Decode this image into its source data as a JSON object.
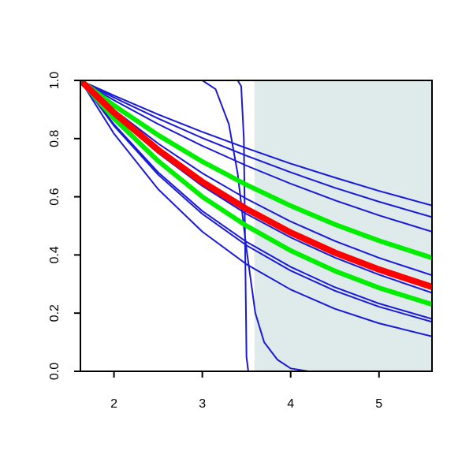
{
  "chart_data": {
    "type": "line",
    "xlim": [
      1.62,
      5.6
    ],
    "ylim": [
      0,
      1
    ],
    "xticks": [
      2,
      3,
      4,
      5
    ],
    "yticks": [
      {
        "value": 0,
        "label": "0.0"
      },
      0.2,
      0.4,
      0.6,
      0.8,
      {
        "value": 1,
        "label": "1.0"
      }
    ],
    "shaded_region": {
      "xlim": [
        3.59,
        5.6
      ],
      "color": "#dfeaea"
    },
    "series": [
      {
        "color": "#1a1ad6",
        "width": 2,
        "x": [
          1.62,
          2,
          2.5,
          3,
          3.5,
          4,
          4.5,
          5,
          5.6
        ],
        "values": [
          1,
          0.948,
          0.883,
          0.823,
          0.767,
          0.714,
          0.666,
          0.62,
          0.57
        ]
      },
      {
        "color": "#1a1ad6",
        "width": 2,
        "x": [
          1.62,
          2,
          2.5,
          3,
          3.5,
          4,
          4.5,
          5,
          5.6
        ],
        "values": [
          1,
          0.941,
          0.869,
          0.802,
          0.741,
          0.684,
          0.631,
          0.583,
          0.53
        ]
      },
      {
        "color": "#1a1ad6",
        "width": 2,
        "x": [
          1.62,
          2,
          2.5,
          3,
          3.5,
          4,
          4.5,
          5,
          5.6
        ],
        "values": [
          1,
          0.932,
          0.85,
          0.775,
          0.707,
          0.645,
          0.588,
          0.536,
          0.48
        ]
      },
      {
        "color": "#1a1ad6",
        "width": 2,
        "x": [
          1.62,
          2,
          2.5,
          3,
          3.5,
          4,
          4.5,
          5,
          5.6
        ],
        "values": [
          1,
          0.899,
          0.783,
          0.681,
          0.593,
          0.515,
          0.448,
          0.39,
          0.33
        ]
      },
      {
        "color": "#1a1ad6",
        "width": 2,
        "x": [
          1.62,
          2,
          2.5,
          3,
          3.5,
          4,
          4.5,
          5,
          5.6
        ],
        "values": [
          1,
          0.881,
          0.75,
          0.637,
          0.541,
          0.46,
          0.391,
          0.332,
          0.27
        ]
      },
      {
        "color": "#1a1ad6",
        "width": 2,
        "x": [
          1.62,
          2,
          2.5,
          3,
          3.5,
          4,
          4.5,
          5,
          5.6
        ],
        "values": [
          1,
          0.849,
          0.684,
          0.551,
          0.445,
          0.359,
          0.289,
          0.233,
          0.18
        ]
      },
      {
        "color": "#1a1ad6",
        "width": 2,
        "x": [
          1.62,
          2,
          2.5,
          3,
          3.5,
          4,
          4.5,
          5,
          5.6
        ],
        "values": [
          1,
          0.844,
          0.676,
          0.541,
          0.433,
          0.346,
          0.277,
          0.222,
          0.17
        ]
      },
      {
        "color": "#1a1ad6",
        "width": 2,
        "x": [
          1.62,
          2,
          2.5,
          3,
          3.5,
          4,
          4.5,
          5,
          5.6
        ],
        "values": [
          1,
          0.817,
          0.626,
          0.48,
          0.368,
          0.281,
          0.215,
          0.165,
          0.12
        ]
      },
      {
        "color": "#1a1ad6",
        "width": 2,
        "x": [
          1.62,
          3,
          3.4,
          3.44,
          3.47,
          3.49,
          3.5,
          3.52,
          5.6
        ],
        "values": [
          1,
          1,
          1,
          0.98,
          0.8,
          0.3,
          0.05,
          0,
          0
        ]
      },
      {
        "color": "#1a1ad6",
        "width": 2,
        "x": [
          1.62,
          3,
          3.15,
          3.3,
          3.4,
          3.5,
          3.6,
          3.7,
          3.85,
          4,
          4.2,
          5.6
        ],
        "values": [
          1,
          1,
          0.97,
          0.85,
          0.68,
          0.42,
          0.2,
          0.1,
          0.04,
          0.01,
          0,
          0
        ]
      },
      {
        "color": "#00ee00",
        "width": 6,
        "x": [
          1.62,
          2,
          2.5,
          3,
          3.5,
          4,
          4.5,
          5,
          5.6
        ],
        "values": [
          1,
          0.914,
          0.812,
          0.721,
          0.641,
          0.569,
          0.505,
          0.449,
          0.39
        ]
      },
      {
        "color": "#00ee00",
        "width": 6,
        "x": [
          1.62,
          2,
          2.5,
          3,
          3.5,
          4,
          4.5,
          5,
          5.6
        ],
        "values": [
          1,
          0.869,
          0.723,
          0.6,
          0.5,
          0.415,
          0.345,
          0.287,
          0.23
        ]
      },
      {
        "color": "#ff0000",
        "width": 8,
        "x": [
          1.62,
          2,
          2.5,
          3,
          3.5,
          4,
          4.5,
          5,
          5.6
        ],
        "values": [
          1,
          0.889,
          0.761,
          0.651,
          0.558,
          0.477,
          0.408,
          0.35,
          0.29
        ]
      }
    ]
  }
}
